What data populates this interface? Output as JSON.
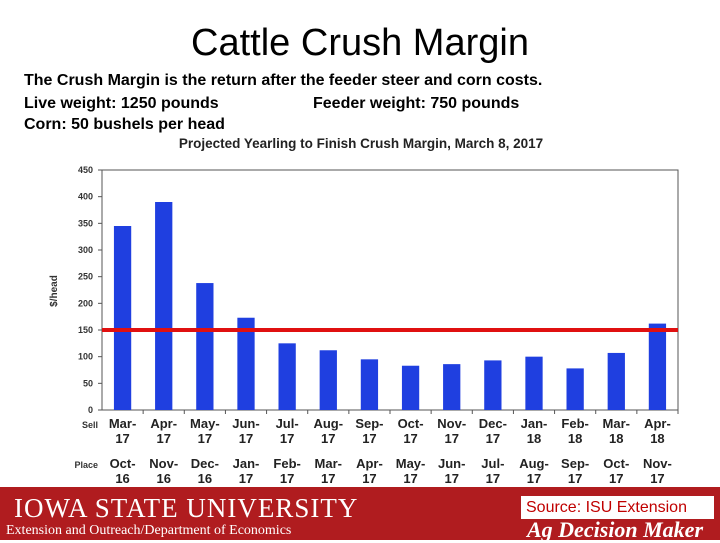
{
  "slide": {
    "title": "Cattle Crush Margin",
    "line1": "The Crush Margin is the return after the feeder steer and corn costs.",
    "line2a": "Live weight:  1250 pounds",
    "line2b": "Feeder weight:  750 pounds",
    "line3": "Corn:  50 bushels per head"
  },
  "chart_data": {
    "type": "bar",
    "title": "Projected Yearling to Finish Crush Margin, March 8, 2017",
    "ylabel": "$/head",
    "ylim": [
      0,
      450
    ],
    "yticks": [
      0,
      50,
      100,
      150,
      200,
      250,
      300,
      350,
      400,
      450
    ],
    "row_labels": {
      "sell": "Sell",
      "place": "Place"
    },
    "sell_months": [
      "Mar-17",
      "Apr-17",
      "May-17",
      "Jun-17",
      "Jul-17",
      "Aug-17",
      "Sep-17",
      "Oct-17",
      "Nov-17",
      "Dec-17",
      "Jan-18",
      "Feb-18",
      "Mar-18",
      "Apr-18"
    ],
    "place_months": [
      "Oct-16",
      "Nov-16",
      "Dec-16",
      "Jan-17",
      "Feb-17",
      "Mar-17",
      "Apr-17",
      "May-17",
      "Jun-17",
      "Jul-17",
      "Aug-17",
      "Sep-17",
      "Oct-17",
      "Nov-17"
    ],
    "values": [
      345,
      390,
      238,
      173,
      125,
      112,
      95,
      83,
      86,
      93,
      100,
      78,
      107,
      162
    ],
    "reference_line": 150,
    "bar_color": "#1f3fe0",
    "line_color": "#e01010",
    "grid": false
  },
  "footer": {
    "university": "IOWA STATE UNIVERSITY",
    "department": "Extension and Outreach/Department of Economics",
    "source": "Source: ISU Extension",
    "brand": "Ag Decision Maker",
    "color": "#b01c1f"
  }
}
